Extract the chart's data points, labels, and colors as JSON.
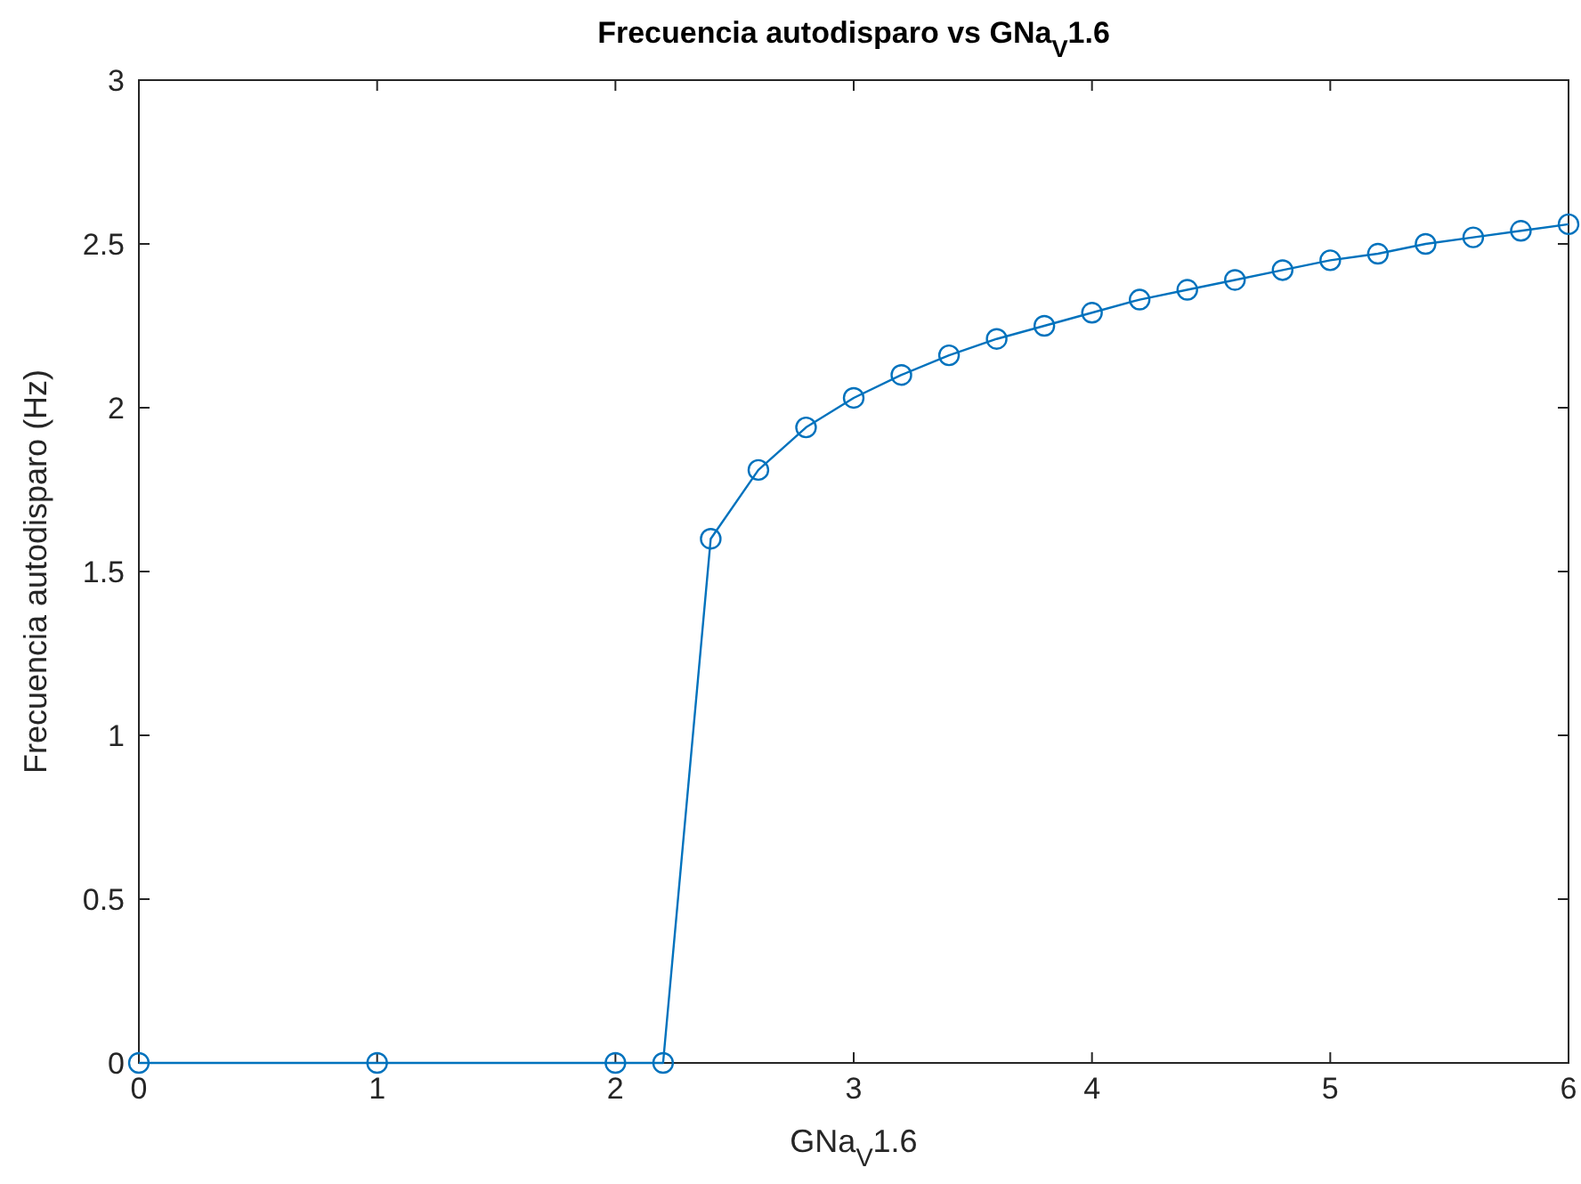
{
  "chart_data": {
    "type": "line",
    "title": "Frecuencia autodisparo vs GNa$_{V}$1.6",
    "xlabel": "GNa$_{V}$1.6",
    "ylabel": "Frecuencia autodisparo (Hz)",
    "x": [
      0,
      1,
      2,
      2.2,
      2.4,
      2.6,
      2.8,
      3.0,
      3.2,
      3.4,
      3.6,
      3.8,
      4.0,
      4.2,
      4.4,
      4.6,
      4.8,
      5.0,
      5.2,
      5.4,
      5.6,
      5.8,
      6.0
    ],
    "series": [
      {
        "color": "#0072bd",
        "values": [
          0,
          0,
          0,
          0,
          1.6,
          1.81,
          1.94,
          2.03,
          2.1,
          2.16,
          2.21,
          2.25,
          2.29,
          2.33,
          2.36,
          2.39,
          2.42,
          2.45,
          2.47,
          2.5,
          2.52,
          2.54,
          2.56
        ]
      }
    ],
    "xlim": [
      0,
      6
    ],
    "xticks": [
      0,
      1,
      2,
      3,
      4,
      5,
      6
    ],
    "ylim": [
      0,
      3
    ],
    "yticks": [
      0,
      0.5,
      1,
      1.5,
      2,
      2.5,
      3
    ],
    "marker": "circle",
    "line_style": "solid"
  }
}
